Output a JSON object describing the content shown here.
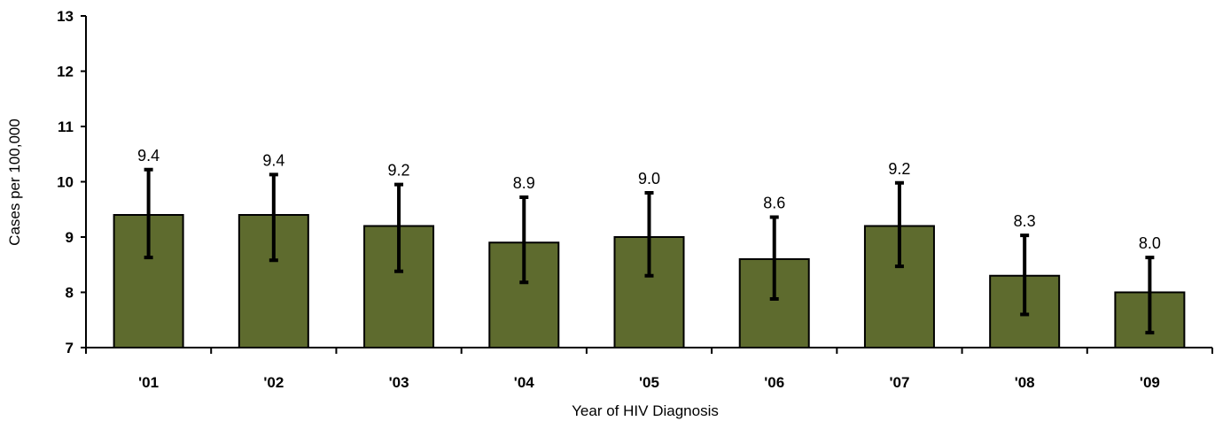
{
  "chart_data": {
    "type": "bar",
    "title": "",
    "xlabel": "Year of HIV Diagnosis",
    "ylabel": "Cases per 100,000",
    "ylim": [
      7,
      13
    ],
    "yticks": [
      "7",
      "8",
      "9",
      "10",
      "11",
      "12",
      "13"
    ],
    "grid": false,
    "legend": "none",
    "categories": [
      "'01",
      "'02",
      "'03",
      "'04",
      "'05",
      "'06",
      "'07",
      "'08",
      "'09"
    ],
    "values": [
      9.4,
      9.4,
      9.2,
      8.9,
      9.0,
      8.6,
      9.2,
      8.3,
      8.0
    ],
    "value_labels": [
      "9.4",
      "9.4",
      "9.2",
      "8.9",
      "9.0",
      "8.6",
      "9.2",
      "8.3",
      "8.0"
    ],
    "error_low": [
      8.63,
      8.58,
      8.38,
      8.18,
      8.3,
      7.88,
      8.47,
      7.6,
      7.27
    ],
    "error_high": [
      10.22,
      10.13,
      9.95,
      9.72,
      9.8,
      9.36,
      9.98,
      9.03,
      8.63
    ],
    "bar_color": "#5e6b2e"
  }
}
